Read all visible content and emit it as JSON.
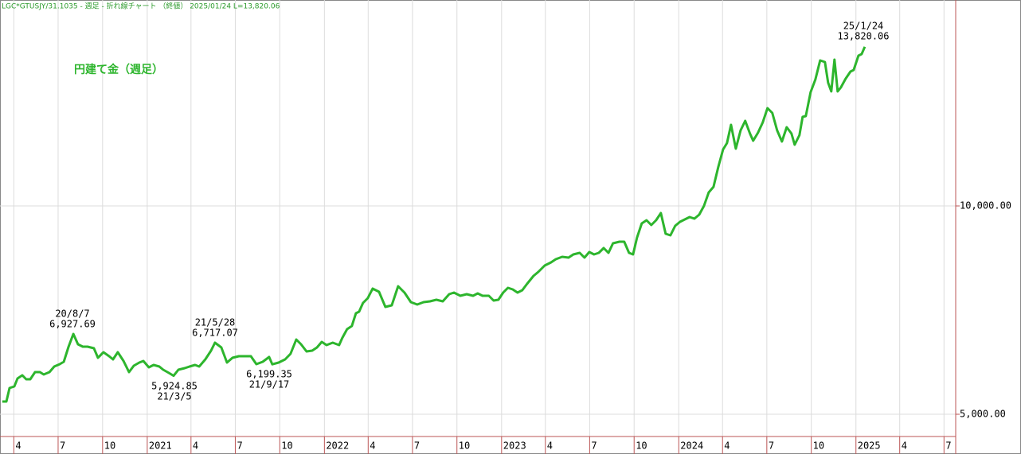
{
  "chart_data": {
    "type": "line",
    "caption": "LGC*GTUSJY/31.1035 - 週足 - 折れ線チャート （終値） 2025/01/24 L=13,820.06",
    "title": "円建て金（週足）",
    "color": "#2db52d",
    "grid": true,
    "xlim": [
      2020.169,
      2025.563
    ],
    "ylim": [
      4466,
      14943
    ],
    "yticks": [
      {
        "value": 5000,
        "label": "5,000.00"
      },
      {
        "value": 10000,
        "label": "10,000.00"
      }
    ],
    "xticks": [
      {
        "value": 2020.247,
        "label": "4"
      },
      {
        "value": 2020.497,
        "label": "7"
      },
      {
        "value": 2020.748,
        "label": "10"
      },
      2021,
      {
        "value": 2021.247,
        "label": "4"
      },
      {
        "value": 2021.497,
        "label": "7"
      },
      {
        "value": 2021.748,
        "label": "10"
      },
      2022,
      {
        "value": 2022.247,
        "label": "4"
      },
      {
        "value": 2022.497,
        "label": "7"
      },
      {
        "value": 2022.748,
        "label": "10"
      },
      2023,
      {
        "value": 2023.247,
        "label": "4"
      },
      {
        "value": 2023.497,
        "label": "7"
      },
      {
        "value": 2023.748,
        "label": "10"
      },
      2024,
      {
        "value": 2024.247,
        "label": "4"
      },
      {
        "value": 2024.497,
        "label": "7"
      },
      {
        "value": 2024.748,
        "label": "10"
      },
      2025,
      {
        "value": 2025.247,
        "label": "4"
      },
      {
        "value": 2025.497,
        "label": "7"
      }
    ],
    "annotations": [
      {
        "date": "20/8/7",
        "label": "6,927.69"
      },
      {
        "date": "21/3/5",
        "label": "5,924.85"
      },
      {
        "date": "21/5/28",
        "label": "6,717.07"
      },
      {
        "date": "21/9/17",
        "label": "6,199.35"
      },
      {
        "date": "25/1/24",
        "label": "13,820.06"
      }
    ],
    "x": [
      2020.182,
      2020.205,
      2020.223,
      2020.25,
      2020.268,
      2020.295,
      2020.317,
      2020.34,
      2020.367,
      2020.394,
      2020.416,
      2020.448,
      2020.475,
      2020.506,
      2020.529,
      2020.556,
      2020.583,
      2020.609,
      2020.636,
      2020.663,
      2020.699,
      2020.722,
      2020.753,
      2020.785,
      2020.807,
      2020.834,
      2020.866,
      2020.897,
      2020.924,
      2020.955,
      2020.978,
      2021.009,
      2021.036,
      2021.068,
      2021.09,
      2021.122,
      2021.149,
      2021.176,
      2021.212,
      2021.239,
      2021.27,
      2021.293,
      2021.328,
      2021.36,
      2021.382,
      2021.418,
      2021.45,
      2021.481,
      2021.517,
      2021.553,
      2021.585,
      2021.616,
      2021.652,
      2021.688,
      2021.706,
      2021.742,
      2021.778,
      2021.809,
      2021.841,
      2021.868,
      2021.899,
      2021.931,
      2021.958,
      2021.985,
      2022.012,
      2022.047,
      2022.083,
      2022.101,
      2022.128,
      2022.155,
      2022.178,
      2022.196,
      2022.218,
      2022.245,
      2022.272,
      2022.308,
      2022.344,
      2022.38,
      2022.416,
      2022.452,
      2022.488,
      2022.524,
      2022.56,
      2022.596,
      2022.632,
      2022.668,
      2022.704,
      2022.731,
      2022.767,
      2022.803,
      2022.839,
      2022.865,
      2022.892,
      2022.928,
      2022.955,
      2022.982,
      2023.009,
      2023.036,
      2023.063,
      2023.09,
      2023.117,
      2023.144,
      2023.18,
      2023.207,
      2023.243,
      2023.279,
      2023.306,
      2023.342,
      2023.378,
      2023.405,
      2023.441,
      2023.468,
      2023.495,
      2023.522,
      2023.549,
      2023.576,
      2023.603,
      2023.629,
      2023.665,
      2023.692,
      2023.719,
      2023.742,
      2023.764,
      2023.791,
      2023.818,
      2023.845,
      2023.872,
      2023.899,
      2023.926,
      2023.953,
      2023.98,
      2024.007,
      2024.034,
      2024.061,
      2024.088,
      2024.115,
      2024.142,
      2024.169,
      2024.196,
      2024.223,
      2024.25,
      2024.272,
      2024.295,
      2024.322,
      2024.349,
      2024.375,
      2024.402,
      2024.42,
      2024.447,
      2024.474,
      2024.501,
      2024.528,
      2024.555,
      2024.582,
      2024.609,
      2024.636,
      2024.654,
      2024.681,
      2024.699,
      2024.717,
      2024.744,
      2024.771,
      2024.798,
      2024.825,
      2024.843,
      2024.861,
      2024.879,
      2024.897,
      2024.915,
      2024.942,
      2024.969,
      2024.987,
      2025.014,
      2025.032,
      2025.05
    ],
    "values": [
      5305,
      5305,
      5630,
      5668,
      5859,
      5935,
      5840,
      5840,
      6011,
      6011,
      5954,
      6011,
      6145,
      6202,
      6260,
      6622,
      6927.69,
      6679,
      6622,
      6622,
      6584,
      6355,
      6489,
      6393,
      6317,
      6489,
      6279,
      6011,
      6164,
      6240,
      6279,
      6126,
      6183,
      6145,
      6069,
      5992,
      5924.85,
      6069,
      6107,
      6145,
      6183,
      6145,
      6317,
      6527,
      6717.07,
      6603,
      6240,
      6355,
      6393,
      6393,
      6393,
      6202,
      6260,
      6374,
      6199.35,
      6240,
      6317,
      6450,
      6794,
      6679,
      6508,
      6527,
      6603,
      6737,
      6660,
      6718,
      6660,
      6832,
      7042,
      7118,
      7424,
      7462,
      7672,
      7786,
      8015,
      7939,
      7576,
      7614,
      8073,
      7920,
      7691,
      7634,
      7691,
      7710,
      7748,
      7710,
      7882,
      7920,
      7844,
      7882,
      7844,
      7901,
      7844,
      7844,
      7729,
      7748,
      7920,
      8034,
      7996,
      7920,
      7977,
      8130,
      8321,
      8416,
      8569,
      8645,
      8721,
      8779,
      8760,
      8836,
      8874,
      8760,
      8893,
      8836,
      8874,
      8989,
      8874,
      9103,
      9141,
      9141,
      8874,
      8836,
      9237,
      9580,
      9656,
      9542,
      9656,
      9828,
      9332,
      9294,
      9523,
      9618,
      9676,
      9733,
      9695,
      9790,
      10000,
      10324,
      10458,
      10935,
      11355,
      11508,
      11947,
      11374,
      11813,
      12042,
      11737,
      11565,
      11756,
      12004,
      12347,
      12233,
      11813,
      11546,
      11889,
      11737,
      11469,
      11698,
      12137,
      12156,
      12729,
      13034,
      13492,
      13454,
      12958,
      12748,
      13511,
      12748,
      12843,
      13053,
      13225,
      13263,
      13607,
      13645,
      13820.06
    ]
  }
}
